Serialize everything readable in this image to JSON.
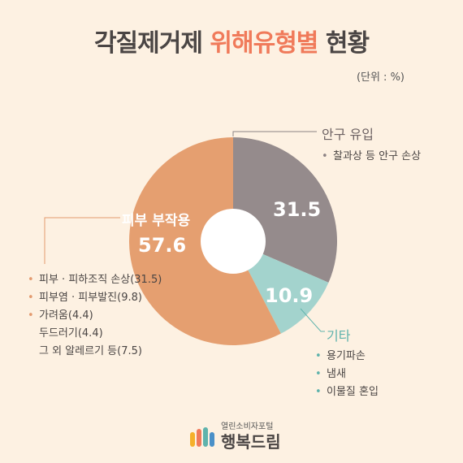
{
  "header": {
    "title_prefix": "각질제거제",
    "title_accent": "위해유형별",
    "title_suffix": "현황",
    "unit": "(단위 : %)"
  },
  "chart_data": {
    "type": "pie",
    "slices": [
      {
        "label": "안구 유입",
        "value": 31.5,
        "color": "#958b8c",
        "value_label": "31.5"
      },
      {
        "label": "기타",
        "value": 10.9,
        "color": "#a3d3cd",
        "value_label": "10.9"
      },
      {
        "label": "피부 부작용",
        "value": 57.6,
        "color": "#e59f70",
        "value_label": "57.6"
      }
    ],
    "donut_hole_color": "#ffffff",
    "details": {
      "eye": [
        "찰과상 등 안구 손상"
      ],
      "other": [
        "용기파손",
        "냄새",
        "이물질 혼입"
      ],
      "skin": [
        "피부 · 피하조직 손상(31.5)",
        "피부염 · 피부발진(9.8)",
        "가려움(4.4)",
        "두드러기(4.4)",
        "그 외 알레르기 등(7.5)"
      ]
    }
  },
  "labels": {
    "bullet": "•"
  },
  "brand": {
    "small": "열린소비자포털",
    "big": "행복드림"
  }
}
